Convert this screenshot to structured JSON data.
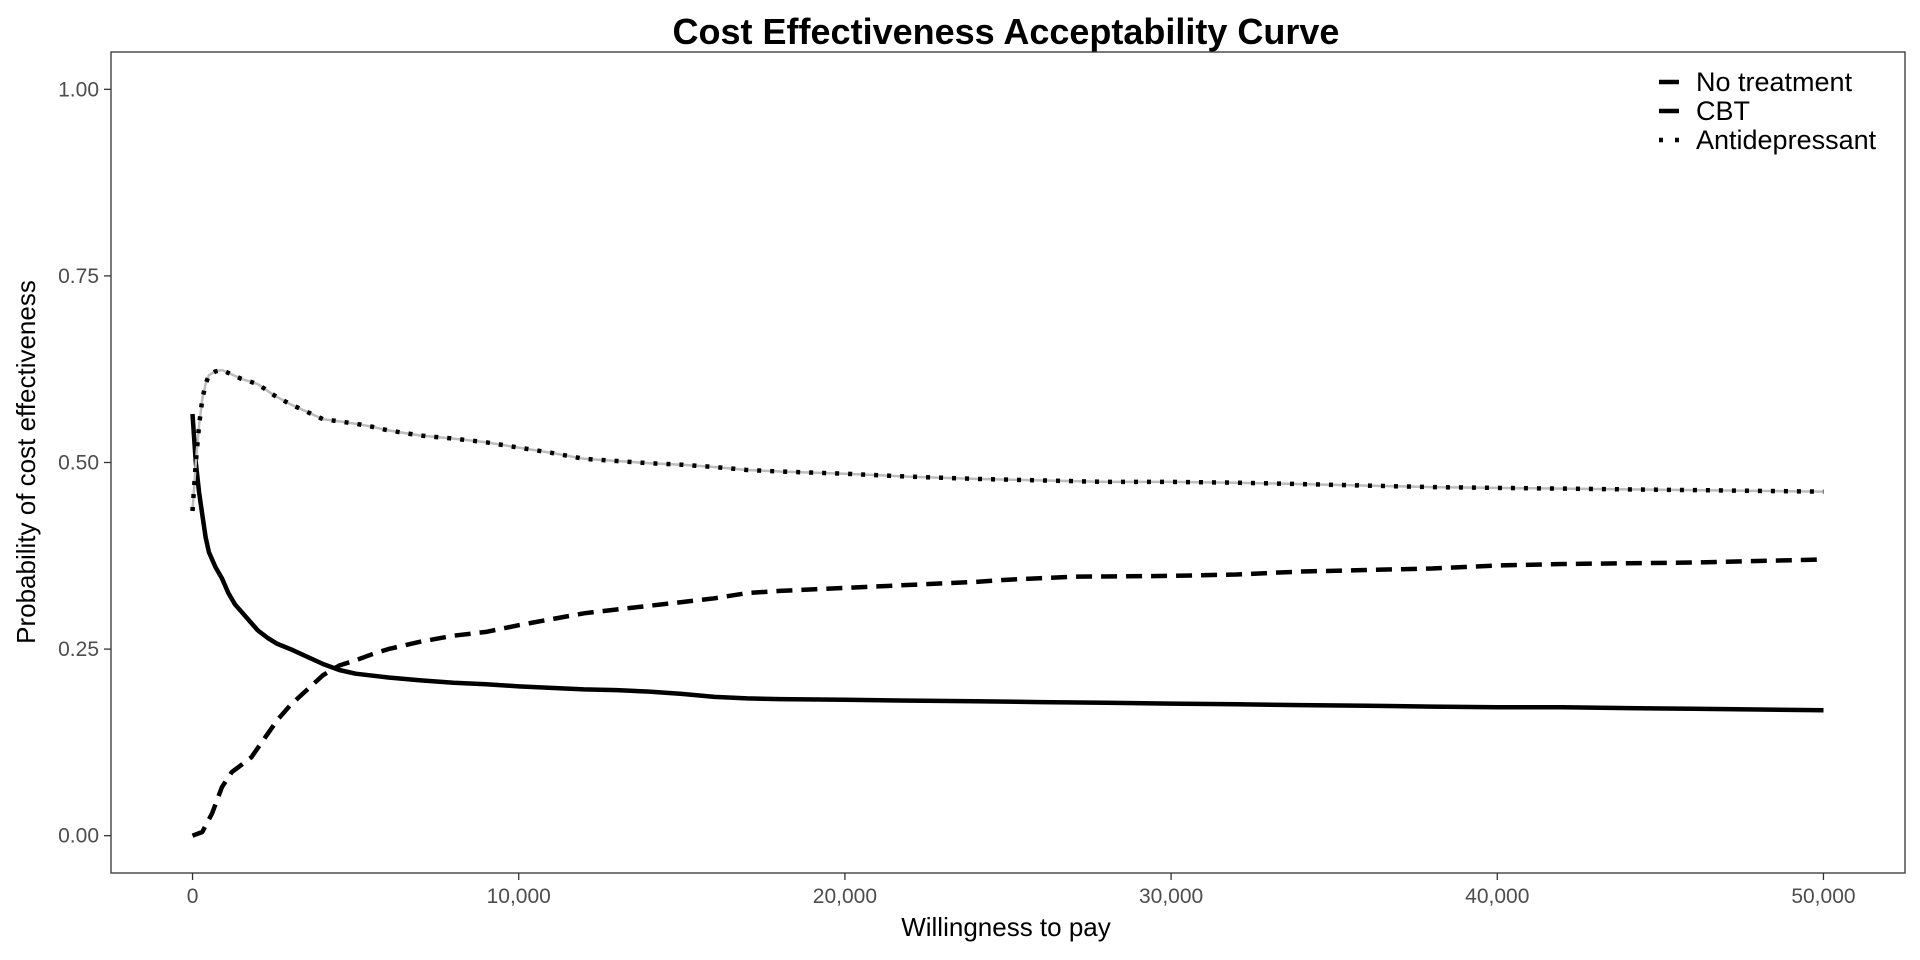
{
  "chart_data": {
    "type": "line",
    "title": "Cost Effectiveness Acceptability Curve",
    "xlabel": "Willingness to pay",
    "ylabel": "Probability of cost effectiveness",
    "xlim": [
      -2500,
      52500
    ],
    "ylim": [
      -0.05,
      1.05
    ],
    "x_ticks": [
      0,
      10000,
      20000,
      30000,
      40000,
      50000
    ],
    "x_tick_labels": [
      "0",
      "10,000",
      "20,000",
      "30,000",
      "40,000",
      "50,000"
    ],
    "y_ticks": [
      0,
      0.25,
      0.5,
      0.75,
      1.0
    ],
    "y_tick_labels": [
      "0.00",
      "0.25",
      "0.50",
      "0.75",
      "1.00"
    ],
    "grid": false,
    "legend_position": "top-right",
    "series": [
      {
        "name": "No treatment",
        "line_style": "solid",
        "color": "#000000",
        "x": [
          0,
          100,
          200,
          300,
          400,
          500,
          700,
          900,
          1100,
          1300,
          1500,
          1800,
          2000,
          2300,
          2600,
          3000,
          3500,
          4000,
          4500,
          5000,
          6000,
          7000,
          8000,
          9000,
          10000,
          11000,
          12000,
          13000,
          14000,
          15000,
          16000,
          17000,
          18000,
          20000,
          22000,
          24000,
          26000,
          28000,
          30000,
          32000,
          34000,
          36000,
          38000,
          40000,
          42000,
          44000,
          46000,
          48000,
          50000
        ],
        "y": [
          0.565,
          0.5,
          0.46,
          0.43,
          0.4,
          0.38,
          0.36,
          0.345,
          0.325,
          0.31,
          0.3,
          0.285,
          0.275,
          0.265,
          0.257,
          0.25,
          0.24,
          0.23,
          0.222,
          0.217,
          0.212,
          0.208,
          0.205,
          0.203,
          0.2,
          0.198,
          0.196,
          0.195,
          0.193,
          0.19,
          0.186,
          0.184,
          0.183,
          0.182,
          0.181,
          0.18,
          0.179,
          0.178,
          0.177,
          0.176,
          0.175,
          0.174,
          0.173,
          0.172,
          0.172,
          0.171,
          0.17,
          0.169,
          0.168
        ]
      },
      {
        "name": "CBT",
        "line_style": "dashed",
        "color": "#000000",
        "x": [
          0,
          300,
          600,
          900,
          1200,
          1500,
          1800,
          2200,
          2600,
          3000,
          3500,
          4000,
          4500,
          5000,
          5500,
          6000,
          7000,
          8000,
          9000,
          10000,
          11000,
          12000,
          13000,
          14000,
          15000,
          16000,
          17000,
          18000,
          19000,
          20000,
          21000,
          22000,
          23000,
          24000,
          25000,
          27000,
          30000,
          32000,
          34000,
          36000,
          38000,
          40000,
          42000,
          44000,
          46000,
          48000,
          50000
        ],
        "y": [
          0.0,
          0.005,
          0.03,
          0.065,
          0.085,
          0.095,
          0.105,
          0.13,
          0.155,
          0.175,
          0.195,
          0.215,
          0.228,
          0.235,
          0.243,
          0.25,
          0.26,
          0.268,
          0.273,
          0.282,
          0.29,
          0.298,
          0.303,
          0.308,
          0.313,
          0.318,
          0.325,
          0.328,
          0.33,
          0.332,
          0.334,
          0.336,
          0.338,
          0.34,
          0.343,
          0.347,
          0.348,
          0.35,
          0.354,
          0.356,
          0.358,
          0.362,
          0.364,
          0.365,
          0.366,
          0.368,
          0.37
        ]
      },
      {
        "name": "Antidepressant",
        "line_style": "dotted",
        "color": "#000000",
        "x": [
          0,
          100,
          200,
          300,
          400,
          500,
          700,
          900,
          1200,
          1500,
          2000,
          2500,
          3000,
          3500,
          4000,
          4500,
          5000,
          5500,
          6000,
          7000,
          8000,
          9000,
          10000,
          11000,
          12000,
          13000,
          14000,
          15000,
          16000,
          17000,
          18000,
          20000,
          22000,
          24000,
          26000,
          28000,
          30000,
          32000,
          34000,
          36000,
          38000,
          40000,
          42000,
          44000,
          46000,
          48000,
          50000
        ],
        "y": [
          0.435,
          0.5,
          0.55,
          0.585,
          0.605,
          0.617,
          0.622,
          0.624,
          0.618,
          0.612,
          0.605,
          0.59,
          0.578,
          0.568,
          0.558,
          0.555,
          0.552,
          0.548,
          0.543,
          0.536,
          0.532,
          0.527,
          0.52,
          0.513,
          0.505,
          0.502,
          0.499,
          0.497,
          0.494,
          0.49,
          0.488,
          0.485,
          0.481,
          0.478,
          0.476,
          0.474,
          0.474,
          0.473,
          0.471,
          0.469,
          0.467,
          0.466,
          0.465,
          0.464,
          0.463,
          0.462,
          0.461
        ]
      }
    ]
  }
}
